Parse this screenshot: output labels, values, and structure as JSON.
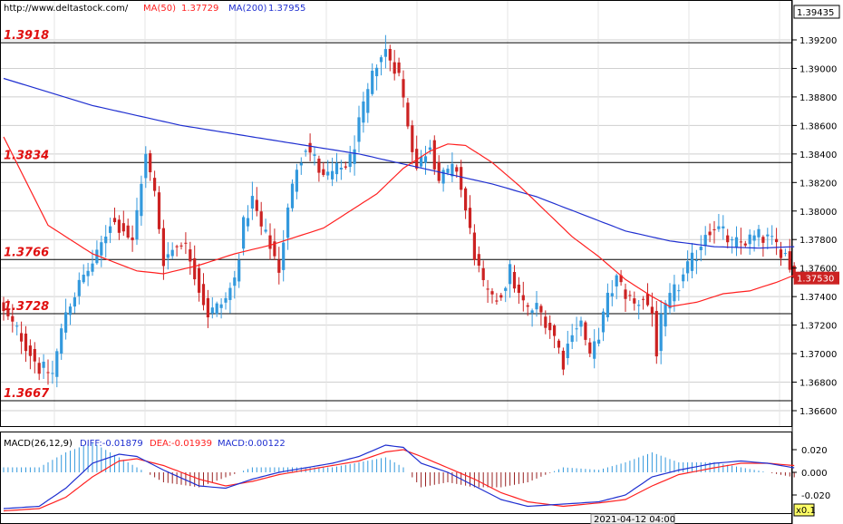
{
  "header": {
    "url": "http://www.deltastock.com/",
    "ma50_label": "MA(50)",
    "ma50_value": "1.37729",
    "ma200_label": "MA(200)",
    "ma200_value": "1.37955"
  },
  "macd_header": {
    "title": "MACD(26,12,9)",
    "diff": "DIFF:-0.01879",
    "dea": "DEA:-0.01939",
    "macd": "MACD:0.00122"
  },
  "axis": {
    "corner_value": "1.39435",
    "current_price": "1.37530",
    "price_ticks": [
      "1.39200",
      "1.39000",
      "1.38800",
      "1.38600",
      "1.38400",
      "1.38200",
      "1.38000",
      "1.37800",
      "1.37600",
      "1.37400",
      "1.37200",
      "1.37000",
      "1.36800",
      "1.36600"
    ],
    "macd_ticks": [
      "0.020",
      "0.000",
      "-0.020"
    ],
    "timestamp": "2021-04-12 04:00",
    "zoom": "x0.1"
  },
  "levels": [
    {
      "label": "1.3918",
      "value": 1.3918
    },
    {
      "label": "1.3834",
      "value": 1.3834
    },
    {
      "label": "1.3766",
      "value": 1.3766
    },
    {
      "label": "1.3728",
      "value": 1.3728
    },
    {
      "label": "1.3667",
      "value": 1.3667
    }
  ],
  "colors": {
    "up": "#3399dd",
    "down": "#cc2222",
    "ma50": "#ff2020",
    "ma200": "#1f2fd0",
    "diff": "#1f2fd0",
    "dea": "#ff2020",
    "level_label": "#e01010",
    "grid": "#cfcfcf"
  },
  "chart_data": [
    {
      "type": "candlestick",
      "price_range": [
        1.3652,
        1.39435
      ],
      "waypoints_close": [
        [
          0,
          1.3728
        ],
        [
          4,
          1.3712
        ],
        [
          8,
          1.369
        ],
        [
          11,
          1.3686
        ],
        [
          14,
          1.373
        ],
        [
          18,
          1.3754
        ],
        [
          21,
          1.3768
        ],
        [
          24,
          1.3793
        ],
        [
          27,
          1.3788
        ],
        [
          29,
          1.3777
        ],
        [
          31,
          1.3822
        ],
        [
          32,
          1.3838
        ],
        [
          34,
          1.3812
        ],
        [
          36,
          1.3766
        ],
        [
          38,
          1.3773
        ],
        [
          40,
          1.378
        ],
        [
          42,
          1.3768
        ],
        [
          44,
          1.3746
        ],
        [
          46,
          1.3728
        ],
        [
          48,
          1.3732
        ],
        [
          50,
          1.3738
        ],
        [
          52,
          1.3752
        ],
        [
          54,
          1.379
        ],
        [
          56,
          1.3808
        ],
        [
          58,
          1.3788
        ],
        [
          60,
          1.3776
        ],
        [
          62,
          1.376
        ],
        [
          64,
          1.38
        ],
        [
          66,
          1.3832
        ],
        [
          68,
          1.3846
        ],
        [
          70,
          1.3836
        ],
        [
          72,
          1.3822
        ],
        [
          74,
          1.3826
        ],
        [
          76,
          1.383
        ],
        [
          78,
          1.3836
        ],
        [
          80,
          1.386
        ],
        [
          82,
          1.3882
        ],
        [
          84,
          1.3905
        ],
        [
          86,
          1.3912
        ],
        [
          88,
          1.3902
        ],
        [
          89,
          1.3895
        ],
        [
          91,
          1.3862
        ],
        [
          93,
          1.383
        ],
        [
          95,
          1.3842
        ],
        [
          96,
          1.3848
        ],
        [
          98,
          1.3822
        ],
        [
          100,
          1.3826
        ],
        [
          102,
          1.383
        ],
        [
          104,
          1.38
        ],
        [
          106,
          1.377
        ],
        [
          108,
          1.3746
        ],
        [
          110,
          1.3736
        ],
        [
          112,
          1.3742
        ],
        [
          114,
          1.3758
        ],
        [
          116,
          1.374
        ],
        [
          118,
          1.373
        ],
        [
          120,
          1.3732
        ],
        [
          122,
          1.3724
        ],
        [
          124,
          1.3712
        ],
        [
          126,
          1.3694
        ],
        [
          128,
          1.3718
        ],
        [
          130,
          1.3722
        ],
        [
          132,
          1.3696
        ],
        [
          134,
          1.3714
        ],
        [
          136,
          1.3738
        ],
        [
          138,
          1.3752
        ],
        [
          140,
          1.3742
        ],
        [
          142,
          1.3734
        ],
        [
          144,
          1.374
        ],
        [
          146,
          1.3728
        ],
        [
          147,
          1.3702
        ],
        [
          148,
          1.3722
        ],
        [
          150,
          1.3738
        ],
        [
          152,
          1.3748
        ],
        [
          154,
          1.376
        ],
        [
          156,
          1.377
        ],
        [
          158,
          1.3786
        ],
        [
          160,
          1.379
        ],
        [
          162,
          1.3784
        ],
        [
          164,
          1.3776
        ],
        [
          166,
          1.3778
        ],
        [
          168,
          1.378
        ],
        [
          170,
          1.3782
        ],
        [
          172,
          1.378
        ],
        [
          174,
          1.3776
        ],
        [
          176,
          1.377
        ],
        [
          178,
          1.3753
        ]
      ],
      "ma50_waypoints": [
        [
          0,
          1.3852
        ],
        [
          10,
          1.379
        ],
        [
          20,
          1.377
        ],
        [
          30,
          1.3758
        ],
        [
          36,
          1.3756
        ],
        [
          44,
          1.3762
        ],
        [
          52,
          1.377
        ],
        [
          60,
          1.3776
        ],
        [
          66,
          1.3782
        ],
        [
          72,
          1.3788
        ],
        [
          78,
          1.38
        ],
        [
          84,
          1.3812
        ],
        [
          90,
          1.383
        ],
        [
          96,
          1.3842
        ],
        [
          100,
          1.3847
        ],
        [
          104,
          1.3846
        ],
        [
          110,
          1.3834
        ],
        [
          116,
          1.3818
        ],
        [
          122,
          1.38
        ],
        [
          128,
          1.3782
        ],
        [
          134,
          1.3768
        ],
        [
          140,
          1.3752
        ],
        [
          146,
          1.374
        ],
        [
          150,
          1.3733
        ],
        [
          156,
          1.3736
        ],
        [
          162,
          1.3742
        ],
        [
          168,
          1.3744
        ],
        [
          174,
          1.375
        ],
        [
          178,
          1.3755
        ]
      ],
      "ma200_waypoints": [
        [
          0,
          1.3893
        ],
        [
          20,
          1.3874
        ],
        [
          40,
          1.386
        ],
        [
          60,
          1.385
        ],
        [
          80,
          1.384
        ],
        [
          90,
          1.3833
        ],
        [
          100,
          1.3826
        ],
        [
          110,
          1.3819
        ],
        [
          120,
          1.381
        ],
        [
          130,
          1.3798
        ],
        [
          140,
          1.3786
        ],
        [
          150,
          1.3779
        ],
        [
          160,
          1.3775
        ],
        [
          170,
          1.3774
        ],
        [
          178,
          1.3775
        ]
      ]
    },
    {
      "type": "macd",
      "y_range": [
        -0.032,
        0.032
      ],
      "diff_waypoints": [
        [
          0,
          -0.032
        ],
        [
          8,
          -0.03
        ],
        [
          14,
          -0.014
        ],
        [
          20,
          0.008
        ],
        [
          26,
          0.016
        ],
        [
          30,
          0.014
        ],
        [
          36,
          0.002
        ],
        [
          44,
          -0.012
        ],
        [
          50,
          -0.014
        ],
        [
          56,
          -0.006
        ],
        [
          62,
          0.0
        ],
        [
          68,
          0.004
        ],
        [
          74,
          0.008
        ],
        [
          80,
          0.014
        ],
        [
          86,
          0.024
        ],
        [
          90,
          0.022
        ],
        [
          94,
          0.008
        ],
        [
          100,
          0.0
        ],
        [
          106,
          -0.012
        ],
        [
          112,
          -0.024
        ],
        [
          118,
          -0.03
        ],
        [
          126,
          -0.028
        ],
        [
          134,
          -0.026
        ],
        [
          140,
          -0.02
        ],
        [
          146,
          -0.004
        ],
        [
          152,
          0.002
        ],
        [
          160,
          0.008
        ],
        [
          166,
          0.01
        ],
        [
          172,
          0.008
        ],
        [
          178,
          0.004
        ]
      ],
      "dea_waypoints": [
        [
          0,
          -0.034
        ],
        [
          8,
          -0.032
        ],
        [
          14,
          -0.022
        ],
        [
          20,
          -0.004
        ],
        [
          26,
          0.01
        ],
        [
          30,
          0.012
        ],
        [
          36,
          0.006
        ],
        [
          44,
          -0.006
        ],
        [
          50,
          -0.012
        ],
        [
          56,
          -0.008
        ],
        [
          62,
          -0.002
        ],
        [
          68,
          0.002
        ],
        [
          74,
          0.006
        ],
        [
          80,
          0.01
        ],
        [
          86,
          0.018
        ],
        [
          90,
          0.02
        ],
        [
          94,
          0.014
        ],
        [
          100,
          0.004
        ],
        [
          106,
          -0.006
        ],
        [
          112,
          -0.018
        ],
        [
          118,
          -0.026
        ],
        [
          126,
          -0.03
        ],
        [
          134,
          -0.027
        ],
        [
          140,
          -0.024
        ],
        [
          146,
          -0.012
        ],
        [
          152,
          -0.002
        ],
        [
          160,
          0.004
        ],
        [
          166,
          0.008
        ],
        [
          172,
          0.008
        ],
        [
          178,
          0.006
        ]
      ]
    }
  ]
}
